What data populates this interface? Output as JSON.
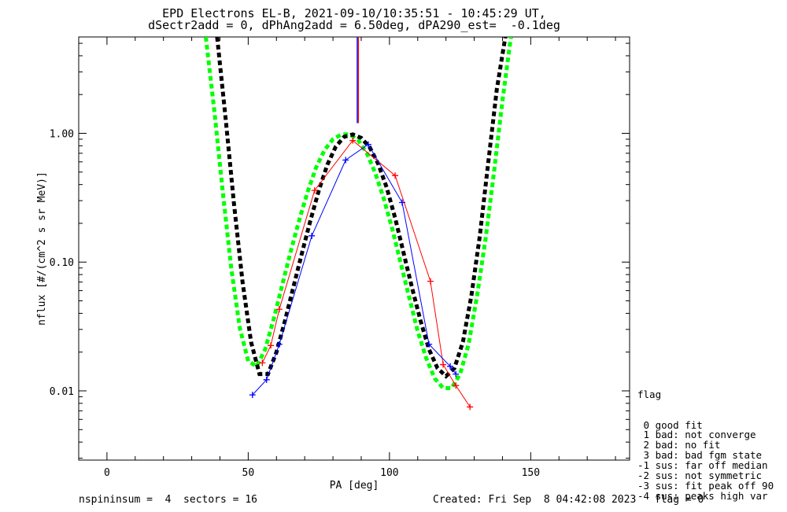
{
  "chart_data": {
    "type": "line",
    "title_line1": "EPD Electrons EL-B, 2021-09-10/10:35:51 - 10:45:29 UT,",
    "title_line2": "dSectr2add = 0, dPhAng2add = 6.50deg, dPA290_est=  -0.1deg",
    "xlabel": "PA [deg]",
    "ylabel": "nflux [#/(cm^2 s sr MeV)]",
    "xlim": [
      -10,
      185
    ],
    "ylim": [
      0.0029,
      5.6
    ],
    "yscale": "log",
    "x_ticks": [
      0,
      50,
      100,
      150
    ],
    "x_tick_labels": [
      "0",
      "50",
      "100",
      "150"
    ],
    "y_ticks": [
      0.01,
      0.1,
      1.0
    ],
    "y_tick_labels": [
      "0.01",
      "0.10",
      "1.00"
    ],
    "series": [
      {
        "color": "#ff0000",
        "x": [
          55,
          58,
          61,
          73.5,
          87,
          102,
          114.5,
          119,
          123.5,
          128.5
        ],
        "y": [
          0.0165,
          0.0225,
          0.043,
          0.36,
          0.88,
          0.47,
          0.071,
          0.016,
          0.011,
          0.0075
        ]
      },
      {
        "color": "#0000ff",
        "x": [
          51.5,
          56.5,
          61,
          72.5,
          84.5,
          92.5,
          104.5,
          114,
          121.5,
          123.5
        ],
        "y": [
          0.0093,
          0.0122,
          0.023,
          0.16,
          0.62,
          0.82,
          0.29,
          0.023,
          0.0155,
          0.0135
        ]
      },
      {
        "color": "#000000",
        "x": [
          39,
          42,
          45,
          48,
          51,
          54,
          57,
          60,
          63,
          66,
          69,
          72,
          75,
          78,
          81,
          84,
          87,
          90,
          93,
          96,
          99,
          102,
          105,
          108,
          111,
          114,
          117,
          120,
          123,
          126,
          129,
          132,
          135,
          138,
          141
        ],
        "y": [
          5.6,
          1.3,
          0.28,
          0.07,
          0.024,
          0.0135,
          0.0135,
          0.02,
          0.035,
          0.064,
          0.117,
          0.21,
          0.36,
          0.57,
          0.79,
          0.94,
          0.98,
          0.92,
          0.78,
          0.58,
          0.38,
          0.22,
          0.118,
          0.063,
          0.035,
          0.021,
          0.015,
          0.013,
          0.015,
          0.024,
          0.055,
          0.16,
          0.6,
          2.2,
          5.6
        ]
      },
      {
        "color": "#00ff00",
        "x": [
          35,
          38,
          41,
          44,
          47,
          50,
          53,
          56,
          59,
          62,
          65,
          68,
          71,
          74,
          77,
          80,
          83,
          86,
          89,
          92,
          95,
          98,
          101,
          104,
          107,
          110,
          113,
          116,
          119,
          122,
          125,
          128,
          131,
          134,
          137,
          140,
          143
        ],
        "y": [
          5.6,
          1.5,
          0.35,
          0.09,
          0.031,
          0.017,
          0.0155,
          0.021,
          0.036,
          0.066,
          0.12,
          0.21,
          0.35,
          0.54,
          0.74,
          0.9,
          0.98,
          0.98,
          0.88,
          0.7,
          0.49,
          0.31,
          0.18,
          0.098,
          0.053,
          0.029,
          0.018,
          0.0125,
          0.0105,
          0.0105,
          0.0135,
          0.023,
          0.055,
          0.15,
          0.5,
          1.8,
          5.6
        ]
      }
    ],
    "vertical_markers": [
      {
        "color": "#0000ff",
        "x": 88.6,
        "y_from": 1.2,
        "y_to": 5.6
      },
      {
        "color": "#ff0000",
        "x": 89.0,
        "y_from": 1.2,
        "y_to": 5.6
      }
    ]
  },
  "legend": {
    "title": "flag",
    "items": [
      " 0 good fit",
      " 1 bad: not converge",
      " 2 bad: no fit",
      " 3 bad: bad fgm state",
      "-1 sus: far off median",
      "-2 sus: not symmetric",
      "-3 sus: fit peak off 90",
      "-4 sus: peaks high var"
    ]
  },
  "footer": {
    "left": "nspininsum =  4  sectors = 16",
    "right": "Created: Fri Sep  8 04:42:08 2023   flag = 0"
  }
}
